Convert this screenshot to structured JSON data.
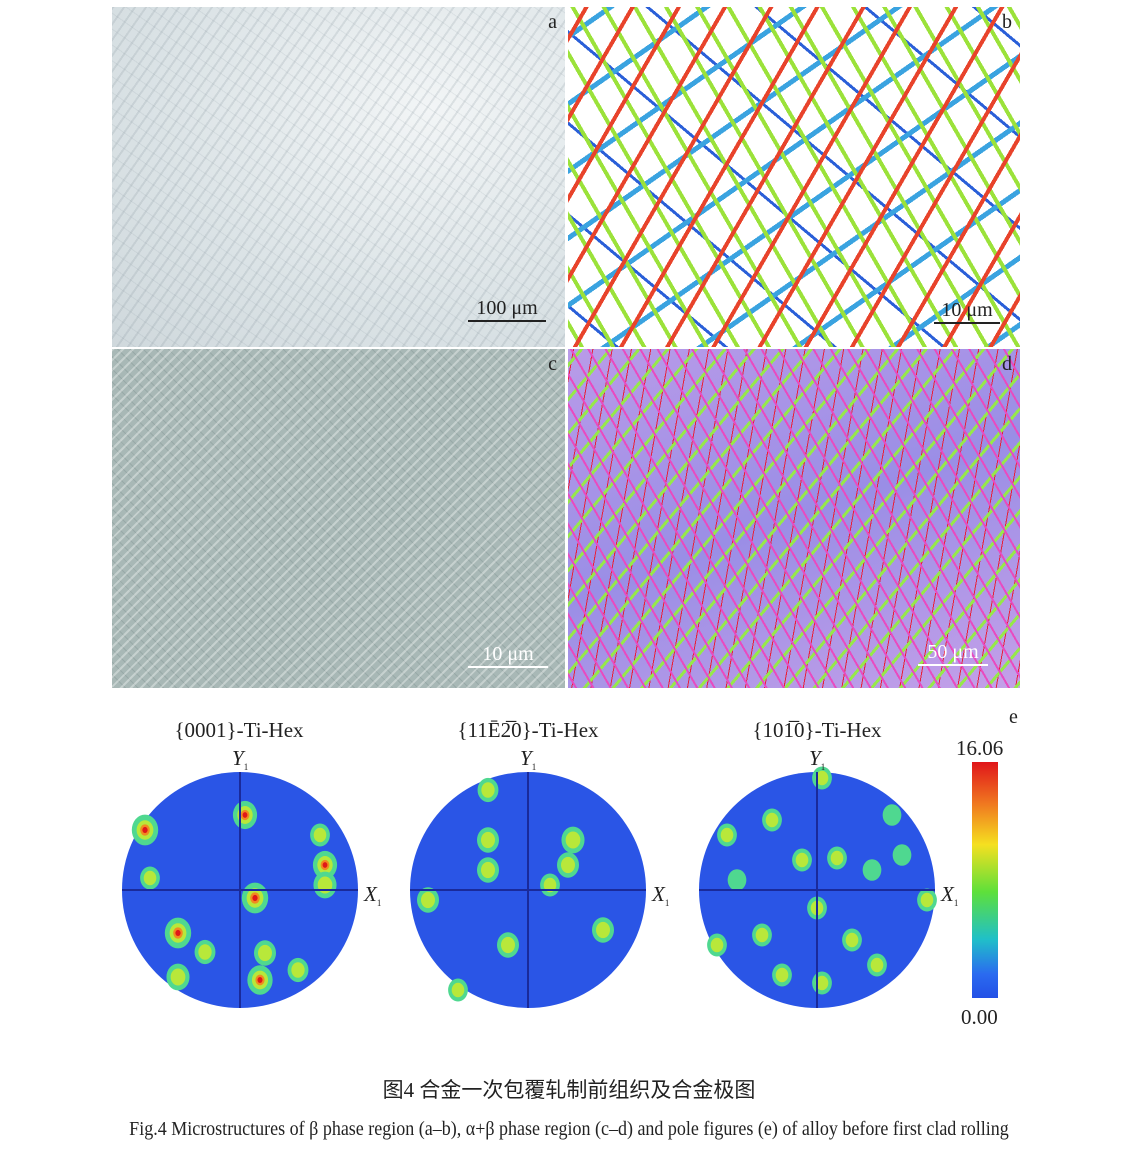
{
  "panels": [
    {
      "label": "a",
      "scale_bar": "100 μm"
    },
    {
      "label": "b",
      "scale_bar": "10 μm"
    },
    {
      "label": "c",
      "scale_bar": "10 μm"
    },
    {
      "label": "d",
      "scale_bar": "50 μm"
    }
  ],
  "pole_figures": {
    "label": "e",
    "titles": [
      "{0001}-Ti-Hex",
      "{11Ē2̅0}-Ti-Hex",
      "{101̅0}-Ti-Hex"
    ],
    "y_axis": "Y",
    "x_axis": "X",
    "axis_sub": "1",
    "colorbar": {
      "max": "16.06",
      "min": "0.00",
      "colors": [
        "#e0151a",
        "#f5e020",
        "#5ee03a",
        "#2a6af0"
      ]
    }
  },
  "caption": {
    "zh": "图4  合金一次包覆轧制前组织及合金极图",
    "en": "Fig.4  Microstructures of β phase region (a–b), α+β phase region (c–d) and pole figures (e) of alloy before first clad rolling"
  }
}
